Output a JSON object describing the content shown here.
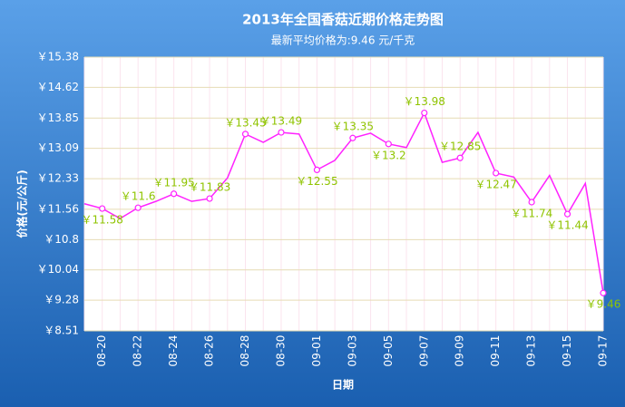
{
  "chart_data": {
    "type": "line",
    "title": "2013年全国香菇近期价格走势图",
    "subtitle": "最新平均价格为:9.46 元/千克",
    "y_label": "价格(元/公斤)",
    "x_label": "日期",
    "categories": [
      null,
      "08-20",
      null,
      "08-22",
      null,
      "08-24",
      null,
      "08-26",
      null,
      "08-28",
      null,
      "08-30",
      null,
      "09-01",
      null,
      "09-03",
      null,
      "09-05",
      null,
      "09-07",
      null,
      "09-09",
      null,
      "09-11",
      null,
      "09-13",
      null,
      "09-15",
      null,
      "09-17"
    ],
    "series": [
      {
        "color": "#ff22ff",
        "values": [
          11.7,
          11.58,
          11.33,
          11.6,
          11.76,
          11.95,
          11.76,
          11.83,
          12.35,
          13.45,
          13.24,
          13.49,
          13.45,
          12.55,
          12.79,
          13.35,
          13.47,
          13.2,
          13.11,
          13.98,
          12.74,
          12.85,
          13.49,
          12.47,
          12.37,
          11.74,
          12.41,
          11.44,
          12.21,
          9.46
        ],
        "value_labels": [
          null,
          "￥11.58",
          null,
          "￥11.6",
          null,
          "￥11.95",
          null,
          "￥11.83",
          null,
          "￥13.45",
          null,
          "￥13.49",
          null,
          "￥12.55",
          null,
          "￥13.35",
          null,
          "￥13.2",
          null,
          "￥13.98",
          null,
          "￥12.85",
          null,
          "￥12.47",
          null,
          "￥11.74",
          null,
          "￥11.44",
          null,
          "￥9.46"
        ]
      }
    ],
    "ylim": [
      8.51,
      15.38
    ],
    "yticks": [
      {
        "value": 15.38,
        "label": "￥15.38"
      },
      {
        "value": 14.62,
        "label": "￥14.62"
      },
      {
        "value": 13.85,
        "label": "￥13.85"
      },
      {
        "value": 13.09,
        "label": "￥13.09"
      },
      {
        "value": 12.33,
        "label": "￥12.33"
      },
      {
        "value": 11.56,
        "label": "￥11.56"
      },
      {
        "value": 10.8,
        "label": "￥10.8"
      },
      {
        "value": 10.04,
        "label": "￥10.04"
      },
      {
        "value": 9.28,
        "label": "￥9.28"
      },
      {
        "value": 8.51,
        "label": "￥8.51"
      }
    ],
    "grid": true,
    "label_color": "#8fc400"
  }
}
